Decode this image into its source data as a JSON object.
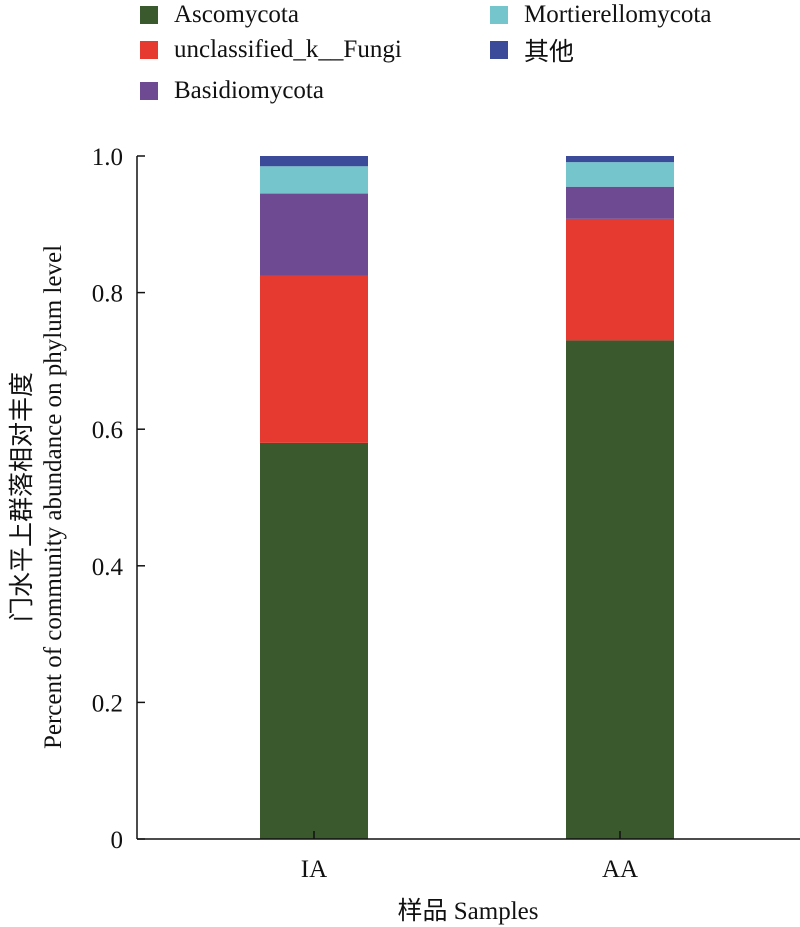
{
  "chart_data": {
    "type": "bar",
    "stacked": true,
    "categories": [
      "IA",
      "AA"
    ],
    "series": [
      {
        "name": "Ascomycota",
        "color": "#3a5a2e",
        "values": [
          0.58,
          0.73
        ]
      },
      {
        "name": "unclassified_k__Fungi",
        "color": "#e63a30",
        "values": [
          0.245,
          0.178
        ]
      },
      {
        "name": "Basidiomycota",
        "color": "#6e4a92",
        "values": [
          0.12,
          0.047
        ]
      },
      {
        "name": "Mortierellomycota",
        "color": "#74c6cc",
        "values": [
          0.04,
          0.036
        ]
      },
      {
        "name": "其他",
        "color": "#3b4a99",
        "values": [
          0.015,
          0.009
        ]
      }
    ],
    "ylabel_cn": "门水平上群落相对丰度",
    "ylabel_en": "Percent of community abundance on phylum level",
    "xlabel": "样品 Samples",
    "ylim": [
      0,
      1.0
    ],
    "yticks": [
      "0",
      "0.2",
      "0.4",
      "0.6",
      "0.8",
      "1.0"
    ],
    "legend_position": "top"
  }
}
